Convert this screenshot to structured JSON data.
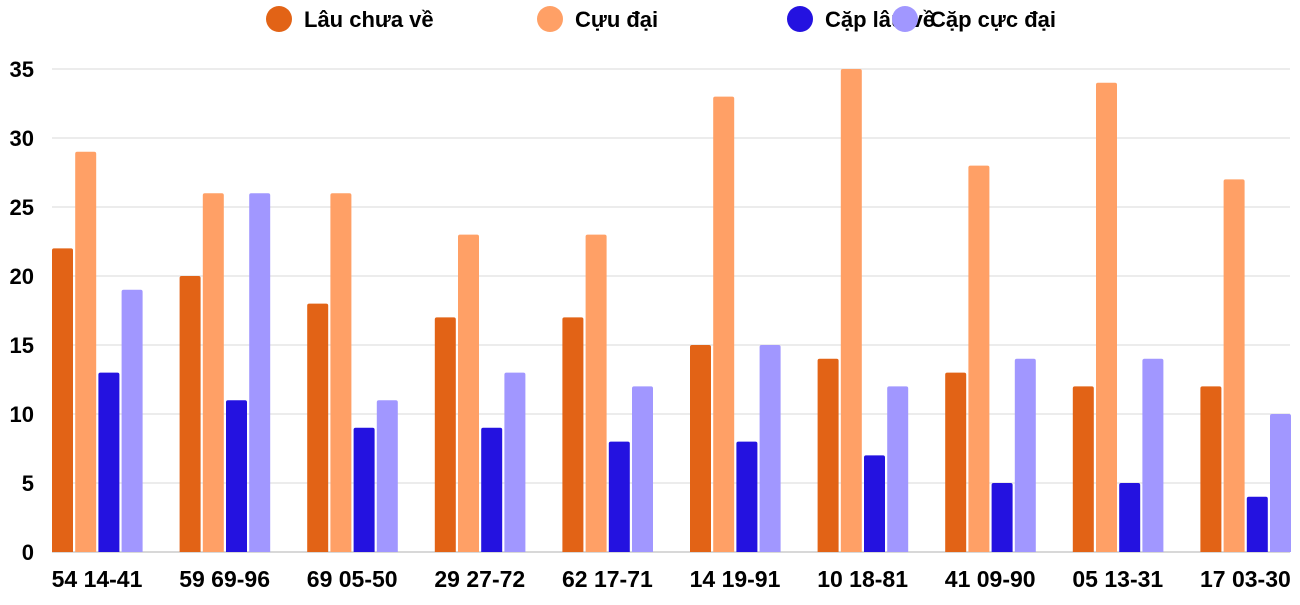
{
  "chart_data": {
    "type": "bar",
    "title": "",
    "xlabel": "",
    "ylabel": "",
    "ylim": [
      0,
      35
    ],
    "yticks": [
      0,
      5,
      10,
      15,
      20,
      25,
      30,
      35
    ],
    "grid": true,
    "legend_position": "top",
    "categories": [
      "54 14-41",
      "59 69-96",
      "69 05-50",
      "29 27-72",
      "62 17-71",
      "14 19-91",
      "10 18-81",
      "41 09-90",
      "05 13-31",
      "17 03-30"
    ],
    "series": [
      {
        "name": "Lâu chưa về",
        "color": "#e26316",
        "values": [
          22,
          20,
          18,
          17,
          17,
          15,
          14,
          13,
          12,
          12
        ]
      },
      {
        "name": "Cựu đại",
        "color": "#ffa066",
        "values": [
          29,
          26,
          26,
          23,
          23,
          33,
          35,
          28,
          34,
          27
        ]
      },
      {
        "name": "Cặp lâu về",
        "color": "#2412e0",
        "values": [
          13,
          11,
          9,
          9,
          8,
          8,
          7,
          5,
          5,
          4
        ]
      },
      {
        "name": "Cặp cực đại",
        "color": "#a197ff",
        "values": [
          19,
          26,
          11,
          13,
          12,
          15,
          12,
          14,
          14,
          10
        ]
      }
    ]
  }
}
